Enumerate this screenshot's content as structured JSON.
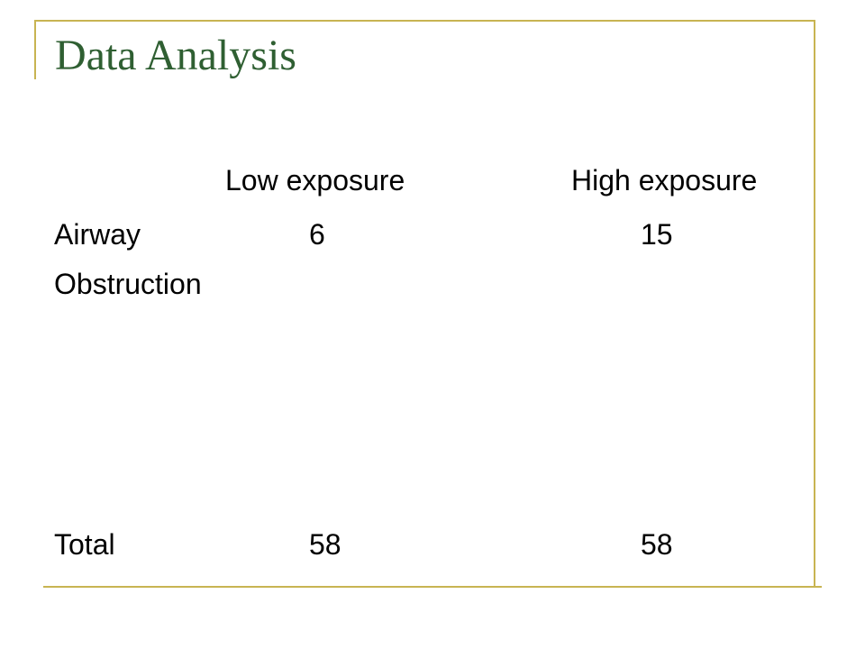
{
  "slide": {
    "title": "Data Analysis"
  },
  "table": {
    "headers": [
      "Low exposure",
      "High exposure"
    ],
    "rows": [
      {
        "label_lines": [
          "Airway",
          "Obstruction"
        ],
        "values": [
          "6",
          "15"
        ]
      },
      {
        "label_lines": [
          "Total"
        ],
        "values": [
          "58",
          "58"
        ]
      }
    ]
  },
  "colors": {
    "title": "#2f5f32",
    "frame": "#c8b452",
    "text": "#000000",
    "background": "#ffffff"
  }
}
